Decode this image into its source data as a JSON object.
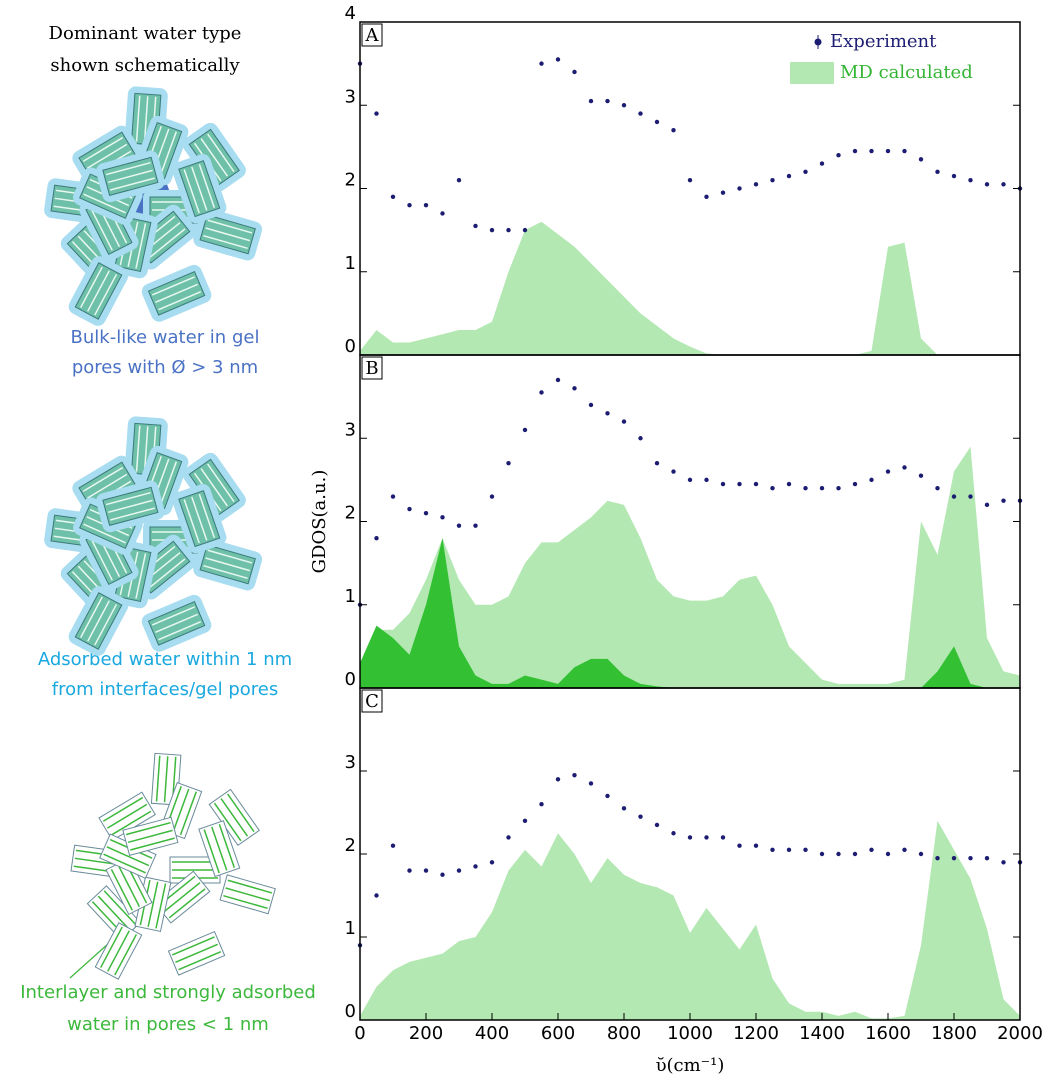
{
  "left_panel": {
    "title_lines": [
      "Dominant water type",
      "shown schematically"
    ],
    "captions": [
      [
        "Bulk-like water in gel",
        "pores with Ø > 3 nm"
      ],
      [
        "Adsorbed water within 1 nm",
        "from interfaces/gel pores"
      ],
      [
        "Interlayer and strongly adsorbed",
        "water in pores < 1 nm"
      ]
    ]
  },
  "chart_data": [
    {
      "type": "line",
      "panel_label": "A",
      "legend": "upper right",
      "xlim": [
        0,
        2000
      ],
      "ylim": [
        0,
        4
      ],
      "yticks": [
        0,
        1,
        2,
        3,
        4
      ],
      "x": [
        0,
        50,
        100,
        150,
        200,
        250,
        300,
        350,
        400,
        450,
        500,
        550,
        600,
        650,
        700,
        750,
        800,
        850,
        900,
        950,
        1000,
        1050,
        1100,
        1150,
        1200,
        1250,
        1300,
        1350,
        1400,
        1450,
        1500,
        1550,
        1600,
        1650,
        1700,
        1750,
        1800,
        1850,
        1900,
        1950,
        2000
      ],
      "series": [
        {
          "name": "MD calculated",
          "kind": "area",
          "color": "#b3e8b3",
          "values": [
            0.05,
            0.3,
            0.15,
            0.15,
            0.2,
            0.25,
            0.3,
            0.3,
            0.4,
            1.0,
            1.5,
            1.6,
            1.45,
            1.3,
            1.1,
            0.9,
            0.7,
            0.5,
            0.35,
            0.2,
            0.1,
            0.02,
            0,
            0,
            0,
            0,
            0,
            0,
            0,
            0,
            0,
            0.05,
            1.3,
            1.35,
            0.2,
            0,
            0,
            0,
            0,
            0,
            0
          ]
        },
        {
          "name": "Experiment",
          "kind": "points",
          "color": "#1c1c72",
          "values": [
            3.5,
            2.9,
            1.9,
            1.8,
            1.8,
            1.7,
            2.1,
            1.55,
            1.5,
            1.5,
            1.5,
            3.5,
            3.55,
            3.4,
            3.05,
            3.05,
            3.0,
            2.9,
            2.8,
            2.7,
            2.1,
            1.9,
            1.95,
            2.0,
            2.05,
            2.1,
            2.15,
            2.2,
            2.3,
            2.4,
            2.45,
            2.45,
            2.45,
            2.45,
            2.35,
            2.2,
            2.15,
            2.1,
            2.05,
            2.05,
            2.0
          ]
        }
      ]
    },
    {
      "type": "line",
      "panel_label": "B",
      "y_label": "GDOS(a.u.)",
      "xlim": [
        0,
        2000
      ],
      "ylim": [
        0,
        4
      ],
      "yticks": [
        0,
        1,
        2,
        3
      ],
      "x": [
        0,
        50,
        100,
        150,
        200,
        250,
        300,
        350,
        400,
        450,
        500,
        550,
        600,
        650,
        700,
        750,
        800,
        850,
        900,
        950,
        1000,
        1050,
        1100,
        1150,
        1200,
        1250,
        1300,
        1350,
        1400,
        1450,
        1500,
        1550,
        1600,
        1650,
        1700,
        1750,
        1800,
        1850,
        1900,
        1950,
        2000
      ],
      "series": [
        {
          "kind": "area",
          "color": "#b3e8b3",
          "values": [
            0.3,
            0.7,
            0.7,
            0.9,
            1.3,
            1.8,
            1.3,
            1.0,
            1.0,
            1.1,
            1.5,
            1.75,
            1.75,
            1.9,
            2.05,
            2.25,
            2.2,
            1.8,
            1.3,
            1.1,
            1.05,
            1.05,
            1.1,
            1.3,
            1.35,
            1.0,
            0.5,
            0.3,
            0.1,
            0.05,
            0.05,
            0.05,
            0.05,
            0.1,
            2.0,
            1.6,
            2.6,
            2.9,
            0.6,
            0.2,
            0.15
          ]
        },
        {
          "kind": "area",
          "color": "#33c133",
          "values": [
            0.3,
            0.75,
            0.6,
            0.4,
            1.0,
            1.8,
            0.5,
            0.15,
            0.05,
            0.05,
            0.15,
            0.1,
            0.05,
            0.25,
            0.35,
            0.35,
            0.15,
            0.05,
            0.02,
            0,
            0,
            0,
            0,
            0,
            0,
            0,
            0,
            0,
            0,
            0,
            0,
            0,
            0,
            0,
            0,
            0.2,
            0.5,
            0.05,
            0,
            0,
            0
          ]
        },
        {
          "kind": "points",
          "color": "#1c1c72",
          "values": [
            1.0,
            1.8,
            2.3,
            2.15,
            2.1,
            2.05,
            1.95,
            1.95,
            2.3,
            2.7,
            3.1,
            3.55,
            3.7,
            3.6,
            3.4,
            3.3,
            3.2,
            3.0,
            2.7,
            2.6,
            2.5,
            2.5,
            2.45,
            2.45,
            2.45,
            2.4,
            2.45,
            2.4,
            2.4,
            2.4,
            2.45,
            2.5,
            2.6,
            2.65,
            2.55,
            2.4,
            2.3,
            2.3,
            2.2,
            2.25,
            2.25
          ]
        }
      ]
    },
    {
      "type": "line",
      "panel_label": "C",
      "x_label": "ῠ(cm⁻¹)",
      "xlim": [
        0,
        2000
      ],
      "ylim": [
        0,
        4
      ],
      "yticks": [
        0,
        1,
        2,
        3
      ],
      "xticks": [
        0,
        200,
        400,
        600,
        800,
        1000,
        1200,
        1400,
        1600,
        1800,
        2000
      ],
      "x": [
        0,
        50,
        100,
        150,
        200,
        250,
        300,
        350,
        400,
        450,
        500,
        550,
        600,
        650,
        700,
        750,
        800,
        850,
        900,
        950,
        1000,
        1050,
        1100,
        1150,
        1200,
        1250,
        1300,
        1350,
        1400,
        1450,
        1500,
        1550,
        1600,
        1650,
        1700,
        1750,
        1800,
        1850,
        1900,
        1950,
        2000
      ],
      "series": [
        {
          "kind": "area",
          "color": "#b3e8b3",
          "values": [
            0.05,
            0.4,
            0.6,
            0.7,
            0.75,
            0.8,
            0.95,
            1.0,
            1.3,
            1.8,
            2.05,
            1.85,
            2.25,
            2.0,
            1.65,
            1.95,
            1.75,
            1.65,
            1.6,
            1.5,
            1.05,
            1.35,
            1.1,
            0.85,
            1.15,
            0.5,
            0.2,
            0.1,
            0.1,
            0.05,
            0.1,
            0.02,
            0.02,
            0.05,
            0.9,
            2.4,
            2.05,
            1.7,
            1.1,
            0.25,
            0.05
          ]
        },
        {
          "kind": "points",
          "color": "#1c1c72",
          "values": [
            0.9,
            1.5,
            2.1,
            1.8,
            1.8,
            1.75,
            1.8,
            1.85,
            1.9,
            2.2,
            2.4,
            2.6,
            2.9,
            2.95,
            2.85,
            2.7,
            2.55,
            2.45,
            2.35,
            2.25,
            2.2,
            2.2,
            2.2,
            2.1,
            2.1,
            2.05,
            2.05,
            2.05,
            2.0,
            2.0,
            2.0,
            2.05,
            2.0,
            2.05,
            2.0,
            1.95,
            1.95,
            1.95,
            1.95,
            1.9,
            1.9
          ]
        }
      ]
    }
  ]
}
